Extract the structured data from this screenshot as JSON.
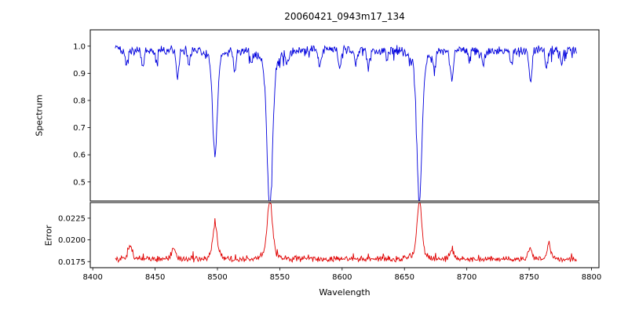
{
  "figure": {
    "background": "#ffffff",
    "spine_color": "#000000"
  },
  "chart_data": [
    {
      "type": "line",
      "panel": "spectrum",
      "title": "20060421_0943m17_134",
      "ylabel": "Spectrum",
      "xlabel": "",
      "series_color": "#0000dd",
      "xlim": [
        8398,
        8806
      ],
      "ylim": [
        0.43,
        1.06
      ],
      "x_ticks": [
        8400,
        8450,
        8500,
        8550,
        8600,
        8650,
        8700,
        8750,
        8800
      ],
      "x_tick_labels": [
        "8400",
        "8450",
        "8500",
        "8550",
        "8600",
        "8650",
        "8700",
        "8750",
        "8800"
      ],
      "show_x_tick_labels": false,
      "y_ticks": [
        0.5,
        0.6,
        0.7,
        0.8,
        0.9,
        1.0
      ],
      "y_tick_labels": [
        "0.5",
        "0.6",
        "0.7",
        "0.8",
        "0.9",
        "1.0"
      ],
      "x_start": 8418,
      "x_end": 8788,
      "step": 0.5,
      "continuum": 0.985,
      "noise": {
        "amplitude": 0.02,
        "spike_probability": 0.06,
        "spike_depth": 0.04,
        "seed": 20060421
      },
      "absorption_lines": [
        {
          "center": 8427,
          "depth": 0.05,
          "sigma": 1.0
        },
        {
          "center": 8440,
          "depth": 0.06,
          "sigma": 1.0
        },
        {
          "center": 8451,
          "depth": 0.04,
          "sigma": 0.9
        },
        {
          "center": 8468,
          "depth": 0.1,
          "sigma": 1.2
        },
        {
          "center": 8477,
          "depth": 0.05,
          "sigma": 0.9
        },
        {
          "center": 8498,
          "depth": 0.35,
          "sigma": 1.8
        },
        {
          "center": 8514,
          "depth": 0.08,
          "sigma": 1.0
        },
        {
          "center": 8527,
          "depth": 0.04,
          "sigma": 0.9
        },
        {
          "center": 8542,
          "depth": 0.52,
          "sigma": 2.2
        },
        {
          "center": 8556,
          "depth": 0.05,
          "sigma": 1.0
        },
        {
          "center": 8582,
          "depth": 0.07,
          "sigma": 1.0
        },
        {
          "center": 8598,
          "depth": 0.07,
          "sigma": 1.0
        },
        {
          "center": 8611,
          "depth": 0.05,
          "sigma": 0.9
        },
        {
          "center": 8621,
          "depth": 0.07,
          "sigma": 1.0
        },
        {
          "center": 8636,
          "depth": 0.04,
          "sigma": 0.9
        },
        {
          "center": 8662,
          "depth": 0.5,
          "sigma": 2.0
        },
        {
          "center": 8674,
          "depth": 0.06,
          "sigma": 1.0
        },
        {
          "center": 8688,
          "depth": 0.11,
          "sigma": 1.2
        },
        {
          "center": 8702,
          "depth": 0.04,
          "sigma": 0.9
        },
        {
          "center": 8713,
          "depth": 0.06,
          "sigma": 1.0
        },
        {
          "center": 8736,
          "depth": 0.05,
          "sigma": 1.0
        },
        {
          "center": 8751,
          "depth": 0.11,
          "sigma": 1.1
        },
        {
          "center": 8764,
          "depth": 0.07,
          "sigma": 1.0
        },
        {
          "center": 8776,
          "depth": 0.05,
          "sigma": 0.9
        }
      ]
    },
    {
      "type": "line",
      "panel": "error",
      "title": "",
      "ylabel": "Error",
      "xlabel": "Wavelength",
      "series_color": "#e00000",
      "xlim": [
        8398,
        8806
      ],
      "ylim": [
        0.0168,
        0.0243
      ],
      "x_ticks": [
        8400,
        8450,
        8500,
        8550,
        8600,
        8650,
        8700,
        8750,
        8800
      ],
      "x_tick_labels": [
        "8400",
        "8450",
        "8500",
        "8550",
        "8600",
        "8650",
        "8700",
        "8750",
        "8800"
      ],
      "show_x_tick_labels": true,
      "y_ticks": [
        0.0175,
        0.02,
        0.0225
      ],
      "y_tick_labels": [
        "0.0175",
        "0.0200",
        "0.0225"
      ],
      "x_start": 8418,
      "x_end": 8788,
      "step": 0.5,
      "baseline": 0.0178,
      "noise": {
        "amplitude": 0.0004,
        "spike_probability": 0.05,
        "spike_height": 0.0007,
        "seed": 943
      },
      "error_peaks": [
        {
          "center": 8430,
          "amplitude": 0.0014,
          "sigma": 1.5
        },
        {
          "center": 8465,
          "amplitude": 0.001,
          "sigma": 1.5
        },
        {
          "center": 8498,
          "amplitude": 0.0034,
          "sigma": 1.8
        },
        {
          "center": 8542,
          "amplitude": 0.006,
          "sigma": 2.0
        },
        {
          "center": 8662,
          "amplitude": 0.0059,
          "sigma": 1.8
        },
        {
          "center": 8688,
          "amplitude": 0.0008,
          "sigma": 1.5
        },
        {
          "center": 8751,
          "amplitude": 0.0011,
          "sigma": 1.5
        },
        {
          "center": 8766,
          "amplitude": 0.0014,
          "sigma": 1.5
        }
      ]
    }
  ]
}
